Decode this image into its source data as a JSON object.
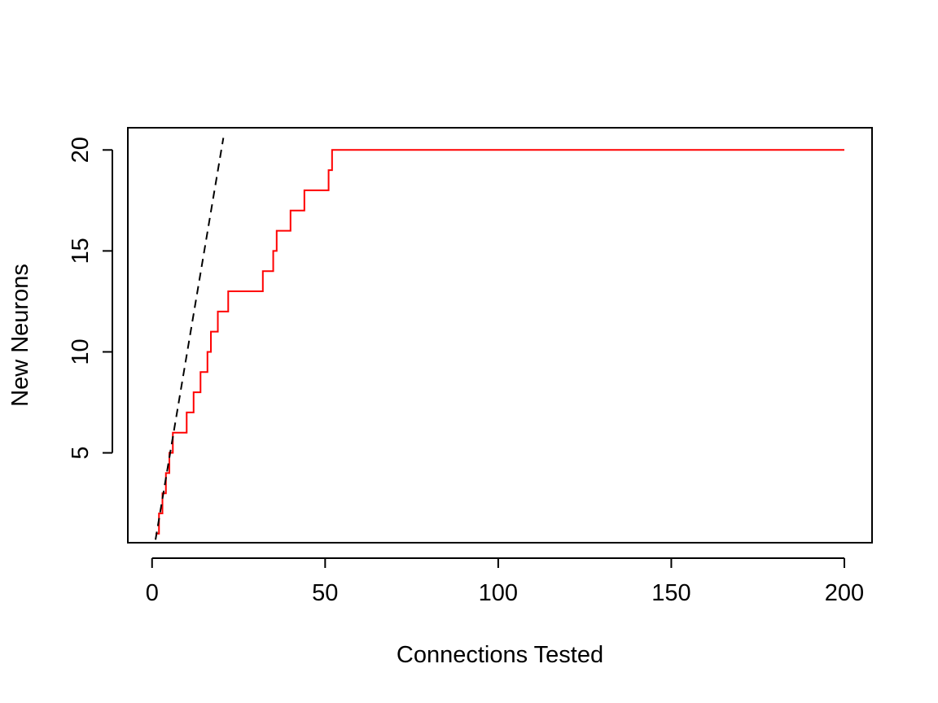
{
  "chart_data": {
    "type": "line",
    "title": "",
    "xlabel": "Connections Tested",
    "ylabel": "New Neurons",
    "xlim": [
      -7,
      208
    ],
    "ylim": [
      0.55,
      21.1
    ],
    "xticks": [
      0,
      50,
      100,
      150,
      200
    ],
    "yticks": [
      5,
      10,
      15,
      20
    ],
    "grid": false,
    "legend": "none",
    "series": [
      {
        "color": "#ff0000",
        "line_style": "solid",
        "step": true,
        "x": [
          1,
          2,
          3,
          4,
          5,
          6,
          9,
          10,
          11,
          12,
          13,
          14,
          15,
          16,
          17,
          18,
          19,
          20,
          21,
          22,
          23,
          31,
          32,
          33,
          34,
          35,
          36,
          38,
          39,
          40,
          42,
          43,
          44,
          50,
          51,
          52,
          200
        ],
        "y": [
          1,
          2,
          3,
          4,
          5,
          6,
          6,
          7,
          7,
          8,
          8,
          9,
          9,
          10,
          11,
          11,
          12,
          12,
          12,
          13,
          13,
          13,
          14,
          14,
          14,
          15,
          16,
          16,
          16,
          17,
          17,
          17,
          18,
          18,
          19,
          20,
          20
        ]
      },
      {
        "color": "#000000",
        "line_style": "dashed",
        "step": false,
        "x": [
          1,
          20.6
        ],
        "y": [
          0.7,
          20.6
        ]
      }
    ]
  }
}
